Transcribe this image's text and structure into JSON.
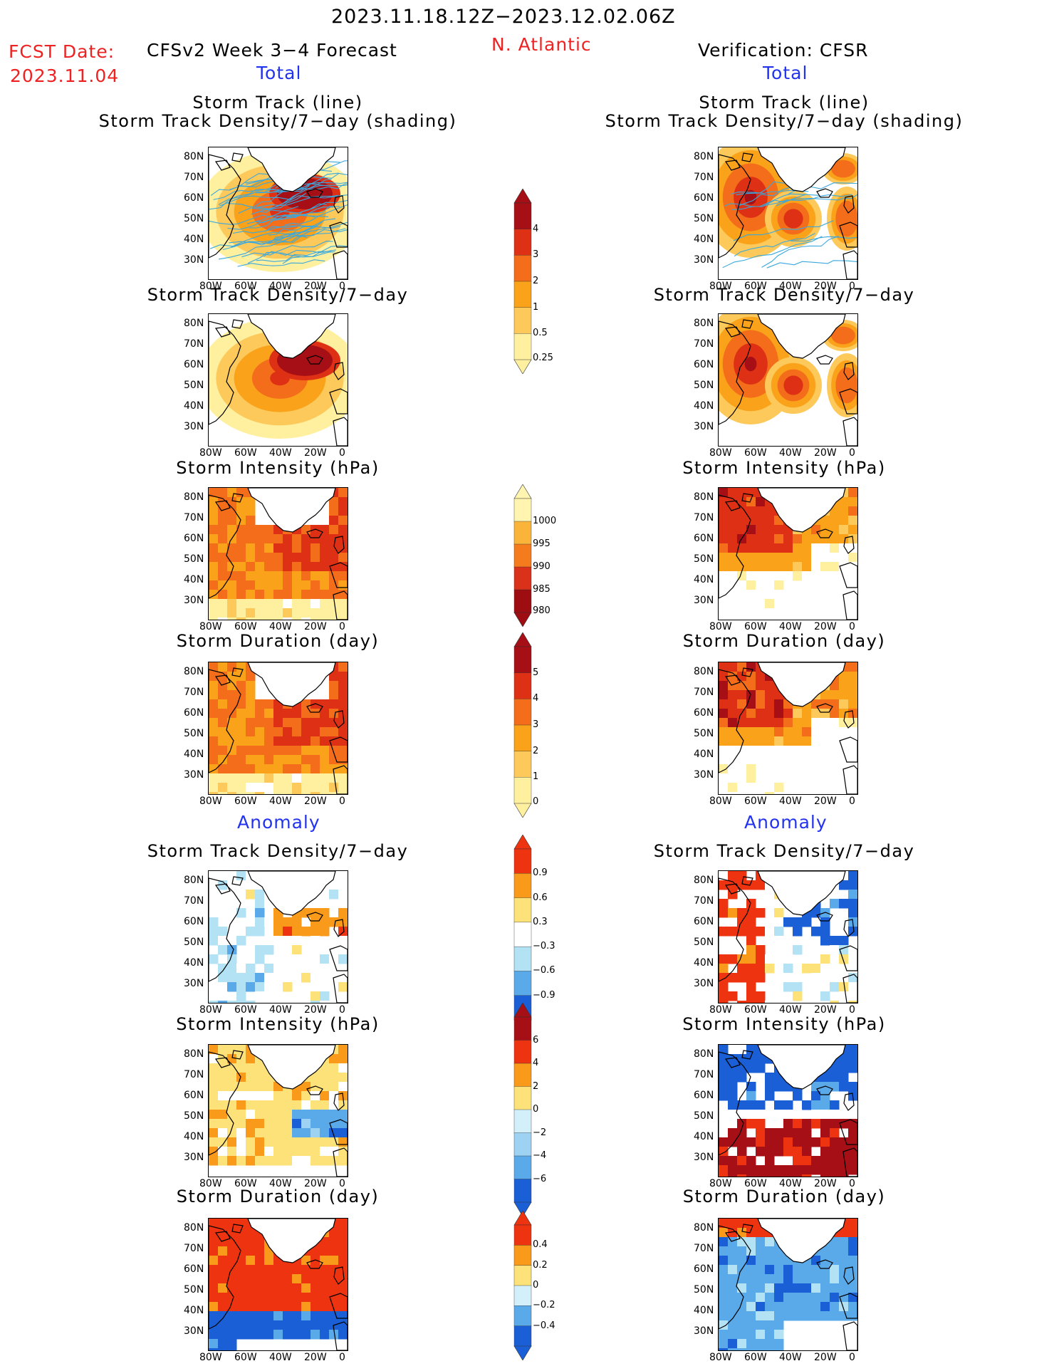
{
  "header": {
    "main_title": "2023.11.18.12Z−2023.12.02.06Z",
    "fcst_label": "FCST Date:",
    "fcst_date": "2023.11.04",
    "model_title": "CFSv2 Week 3−4 Forecast",
    "region": "N. Atlantic",
    "verification": "Verification: CFSR",
    "total_left": "Total",
    "total_right": "Total",
    "anomaly_left": "Anomaly",
    "anomaly_right": "Anomaly"
  },
  "panel_titles": {
    "track": "Storm Track (line)\nStorm Track Density/7−day (shading)",
    "density": "Storm Track Density/7−day",
    "intensity": "Storm Intensity (hPa)",
    "duration": "Storm Duration (day)"
  },
  "axes": {
    "lat_ticks": [
      "80N",
      "70N",
      "60N",
      "50N",
      "40N",
      "30N"
    ],
    "lon_ticks": [
      "80W",
      "60W",
      "40W",
      "20W",
      "0"
    ]
  },
  "colorbars": [
    {
      "name": "density-total",
      "labels": [
        "4",
        "3",
        "2",
        "1",
        "0.5",
        "0.25"
      ],
      "colors": [
        "#a50f15",
        "#dd3015",
        "#f46d1a",
        "#f9a21a",
        "#fcc95a",
        "#fff0a0"
      ]
    },
    {
      "name": "intensity-total",
      "labels": [
        "1000",
        "995",
        "990",
        "985",
        "980"
      ],
      "colors": [
        "#fff4b0",
        "#fbb43a",
        "#f57c1d",
        "#d9311a",
        "#9e0d12"
      ]
    },
    {
      "name": "duration-total",
      "labels": [
        "5",
        "4",
        "3",
        "2",
        "1",
        "0"
      ],
      "colors": [
        "#a50f15",
        "#dd3015",
        "#f46d1a",
        "#f9a21a",
        "#fcc95a",
        "#fff0a0"
      ]
    },
    {
      "name": "density-anom",
      "labels": [
        "0.9",
        "0.6",
        "0.3",
        "−0.3",
        "−0.6",
        "−0.9"
      ],
      "colors": [
        "#ee3311",
        "#f99a1a",
        "#fde27a",
        "#ffffff",
        "#b4e2f5",
        "#5aaaea",
        "#1a5fd6"
      ]
    },
    {
      "name": "intensity-anom",
      "labels": [
        "6",
        "4",
        "2",
        "0",
        "−2",
        "−4",
        "−6"
      ],
      "colors": [
        "#a50f15",
        "#ee3311",
        "#f99a1a",
        "#fde27a",
        "#d3f0fa",
        "#9dd2f2",
        "#5aaaea",
        "#1a5fd6"
      ]
    },
    {
      "name": "duration-anom",
      "labels": [
        "0.4",
        "0.2",
        "0",
        "−0.2",
        "−0.4"
      ],
      "colors": [
        "#ee3311",
        "#f99a1a",
        "#fde27a",
        "#d3f0fa",
        "#5aaaea",
        "#1a5fd6"
      ]
    }
  ]
}
